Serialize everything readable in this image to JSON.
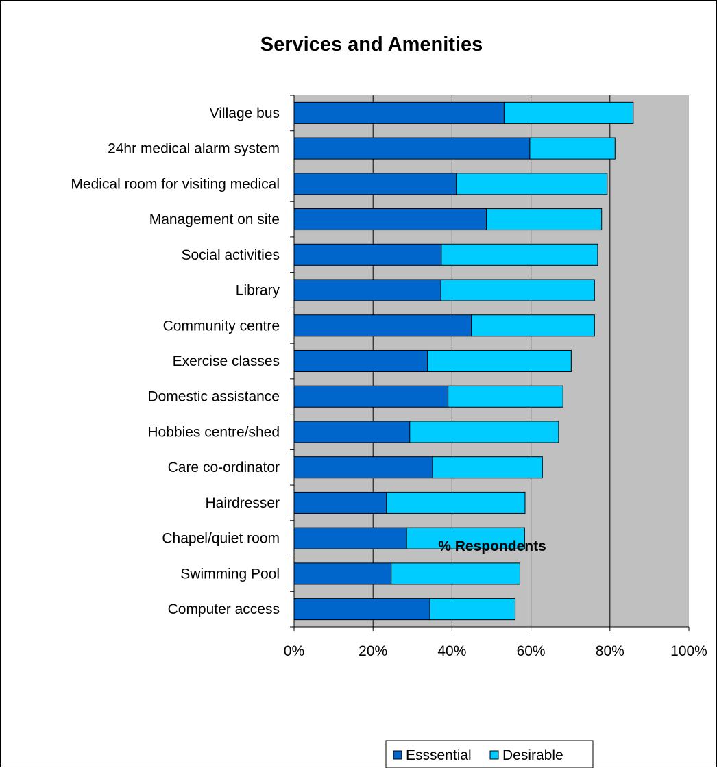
{
  "chart_data": {
    "type": "bar",
    "orientation": "horizontal",
    "stacked": true,
    "title": "Services and Amenities",
    "xlabel": "% Respondents",
    "ylabel": "",
    "xlim": [
      0,
      100
    ],
    "x_ticks": [
      "0%",
      "20%",
      "40%",
      "60%",
      "80%",
      "100%"
    ],
    "grid": true,
    "legend_position": "bottom",
    "categories": [
      "Village bus",
      "24hr medical alarm system",
      "Medical room for visiting medical",
      "Management on site",
      "Social activities",
      "Library",
      "Community centre",
      "Exercise classes",
      "Domestic assistance",
      "Hobbies centre/shed",
      "Care co-ordinator",
      "Hairdresser",
      "Chapel/quiet room",
      "Swimming Pool",
      "Computer access"
    ],
    "series": [
      {
        "name": "Esssential",
        "color": "#0066CC",
        "values": [
          53.2,
          59.7,
          41.1,
          48.7,
          37.3,
          37.2,
          44.9,
          33.8,
          39.0,
          29.3,
          35.1,
          23.4,
          28.5,
          24.6,
          34.4
        ]
      },
      {
        "name": "Desirable",
        "color": "#00CCFF",
        "values": [
          32.7,
          21.6,
          38.2,
          29.2,
          39.6,
          38.9,
          31.2,
          36.4,
          29.1,
          37.7,
          27.8,
          35.1,
          29.9,
          32.6,
          21.6
        ]
      }
    ],
    "plot_background": "#C0C0C0"
  }
}
